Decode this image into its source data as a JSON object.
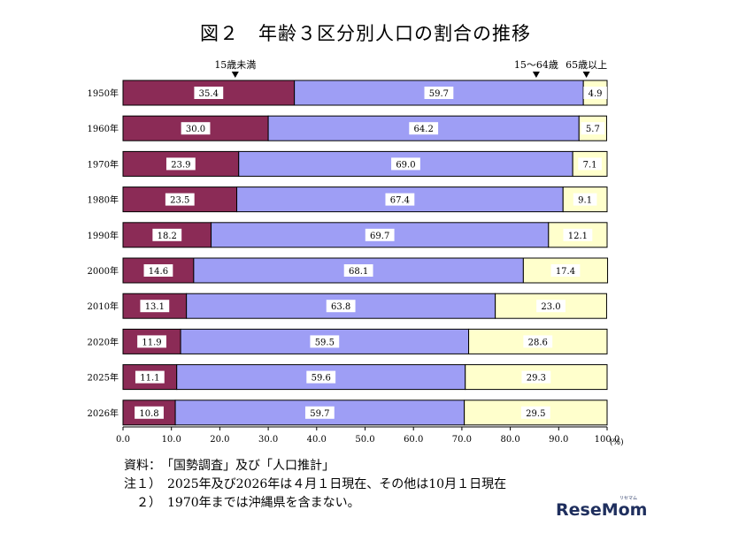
{
  "title": "図２　年齢３区分別人口の割合の推移",
  "chart_data": {
    "type": "bar",
    "orientation": "horizontal",
    "stacked": true,
    "categories": [
      "1950年",
      "1960年",
      "1970年",
      "1980年",
      "1990年",
      "2000年",
      "2010年",
      "2020年",
      "2025年",
      "2026年"
    ],
    "series": [
      {
        "name": "15歳未満",
        "color": "#8b2b56",
        "values": [
          35.4,
          30.0,
          23.9,
          23.5,
          18.2,
          14.6,
          13.1,
          11.9,
          11.1,
          10.8
        ]
      },
      {
        "name": "15～64歳",
        "color": "#9e9ef5",
        "values": [
          59.7,
          64.2,
          69.0,
          67.4,
          69.7,
          68.1,
          63.8,
          59.5,
          59.6,
          59.7
        ]
      },
      {
        "name": "65歳以上",
        "color": "#ffffcc",
        "values": [
          4.9,
          5.7,
          7.1,
          9.1,
          12.1,
          17.4,
          23.0,
          28.6,
          29.3,
          29.5
        ]
      }
    ],
    "xlim": [
      0,
      100
    ],
    "xticks": [
      "0.0",
      "10.0",
      "20.0",
      "30.0",
      "40.0",
      "50.0",
      "60.0",
      "70.0",
      "80.0",
      "90.0",
      "100.0"
    ],
    "xunit": "(%)",
    "grid": false,
    "legend": "top"
  },
  "notes": {
    "source": "資料：　「国勢調査」及び「人口推計」",
    "note1": "注１）　2025年及び2026年は４月１日現在、その他は10月１日現在",
    "note2": "　２）　1970年までは沖縄県を含まない。"
  },
  "logo": {
    "text": "ReseMom",
    "kana": "リセマム"
  }
}
